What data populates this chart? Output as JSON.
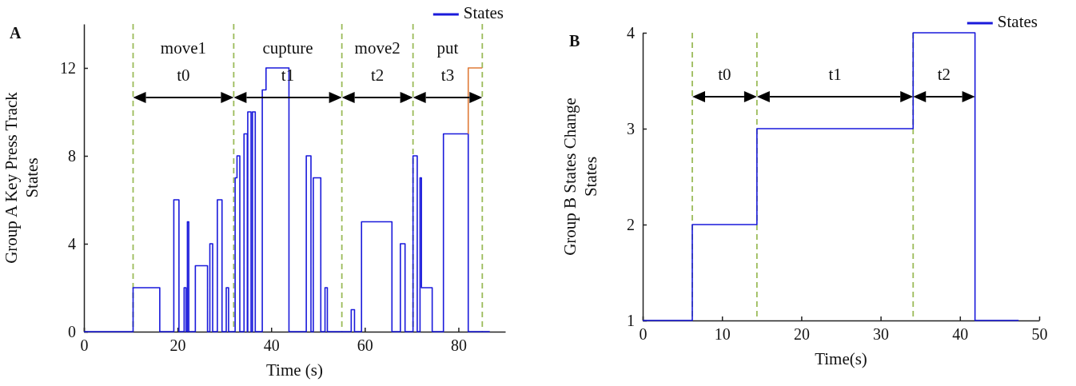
{
  "chart_data": [
    {
      "type": "step",
      "title": "A",
      "xlabel": "Time (s)",
      "ylabel": "Group A Key Press Track\nStates",
      "xlim": [
        0,
        90
      ],
      "xticks": [
        0,
        20,
        40,
        60,
        80
      ],
      "ylim": [
        0,
        14
      ],
      "yticks": [
        0,
        4,
        8,
        12
      ],
      "grid": false,
      "legend": "top right",
      "series": [
        {
          "name": "States",
          "color": "#1a1adb",
          "x": [
            0,
            10.5,
            16.2,
            19.2,
            20.3,
            21.4,
            21.8,
            22.1,
            22.4,
            23.8,
            26.4,
            26.9,
            27.5,
            28.5,
            29.5,
            30.4,
            30.9,
            32.3,
            32.7,
            33.3,
            34.2,
            34.9,
            35.0,
            35.7,
            36.0,
            36.6,
            38.1,
            38.9,
            43.8,
            47.5,
            48.5,
            49.0,
            50.6,
            51.5,
            52.0,
            57.1,
            57.8,
            59.3,
            65.8,
            67.6,
            68.6,
            70.3,
            71.2,
            71.8,
            72.1,
            74.4,
            76.8,
            82.1,
            86.7
          ],
          "values": [
            0,
            2,
            0,
            6,
            0,
            2,
            0,
            5,
            0,
            3,
            0,
            4,
            0,
            6,
            0,
            2,
            0,
            7,
            8,
            0,
            9,
            0,
            10,
            0,
            10,
            0,
            11,
            12,
            0,
            8,
            0,
            7,
            0,
            2,
            0,
            1,
            0,
            5,
            0,
            4,
            0,
            8,
            0,
            7,
            2,
            0,
            9,
            0,
            0
          ]
        },
        {
          "type": "line",
          "color": "#e07b39",
          "x": [
            82.1,
            82.1,
            85.1
          ],
          "values": [
            9,
            12,
            12
          ]
        }
      ],
      "ref_lines": [
        {
          "axis": "x",
          "value": 10.5,
          "color": "#9bbb59",
          "line_style": "dashed"
        },
        {
          "axis": "x",
          "value": 32,
          "color": "#9bbb59",
          "line_style": "dashed"
        },
        {
          "axis": "x",
          "value": 55.1,
          "color": "#9bbb59",
          "line_style": "dashed"
        },
        {
          "axis": "x",
          "value": 70.3,
          "color": "#9bbb59",
          "line_style": "dashed"
        },
        {
          "axis": "x",
          "value": 85.1,
          "color": "#9bbb59",
          "line_style": "dashed"
        }
      ],
      "annotations": [
        "move1",
        "t0",
        "cupture",
        "t1",
        "move2",
        "t2",
        "put",
        "t3"
      ]
    },
    {
      "type": "step",
      "title": "B",
      "xlabel": "Time(s)",
      "ylabel": "Group B States Change\nStates",
      "xlim": [
        0,
        50
      ],
      "xticks": [
        0,
        10,
        20,
        30,
        40,
        50
      ],
      "ylim": [
        1,
        4
      ],
      "yticks": [
        1,
        2,
        3,
        4
      ],
      "grid": false,
      "legend": "top right",
      "series": [
        {
          "name": "States",
          "color": "#1a1adb",
          "x": [
            0,
            6.25,
            14.4,
            34.1,
            41.9,
            47.4
          ],
          "values": [
            1,
            2,
            3,
            4,
            1,
            1
          ]
        }
      ],
      "ref_lines": [
        {
          "axis": "x",
          "value": 6.25,
          "color": "#9bbb59",
          "line_style": "dashed"
        },
        {
          "axis": "x",
          "value": 14.4,
          "color": "#9bbb59",
          "line_style": "dashed"
        },
        {
          "axis": "x",
          "value": 34.1,
          "color": "#9bbb59",
          "line_style": "dashed"
        }
      ],
      "annotations": [
        "t0",
        "t1",
        "t2"
      ]
    }
  ]
}
